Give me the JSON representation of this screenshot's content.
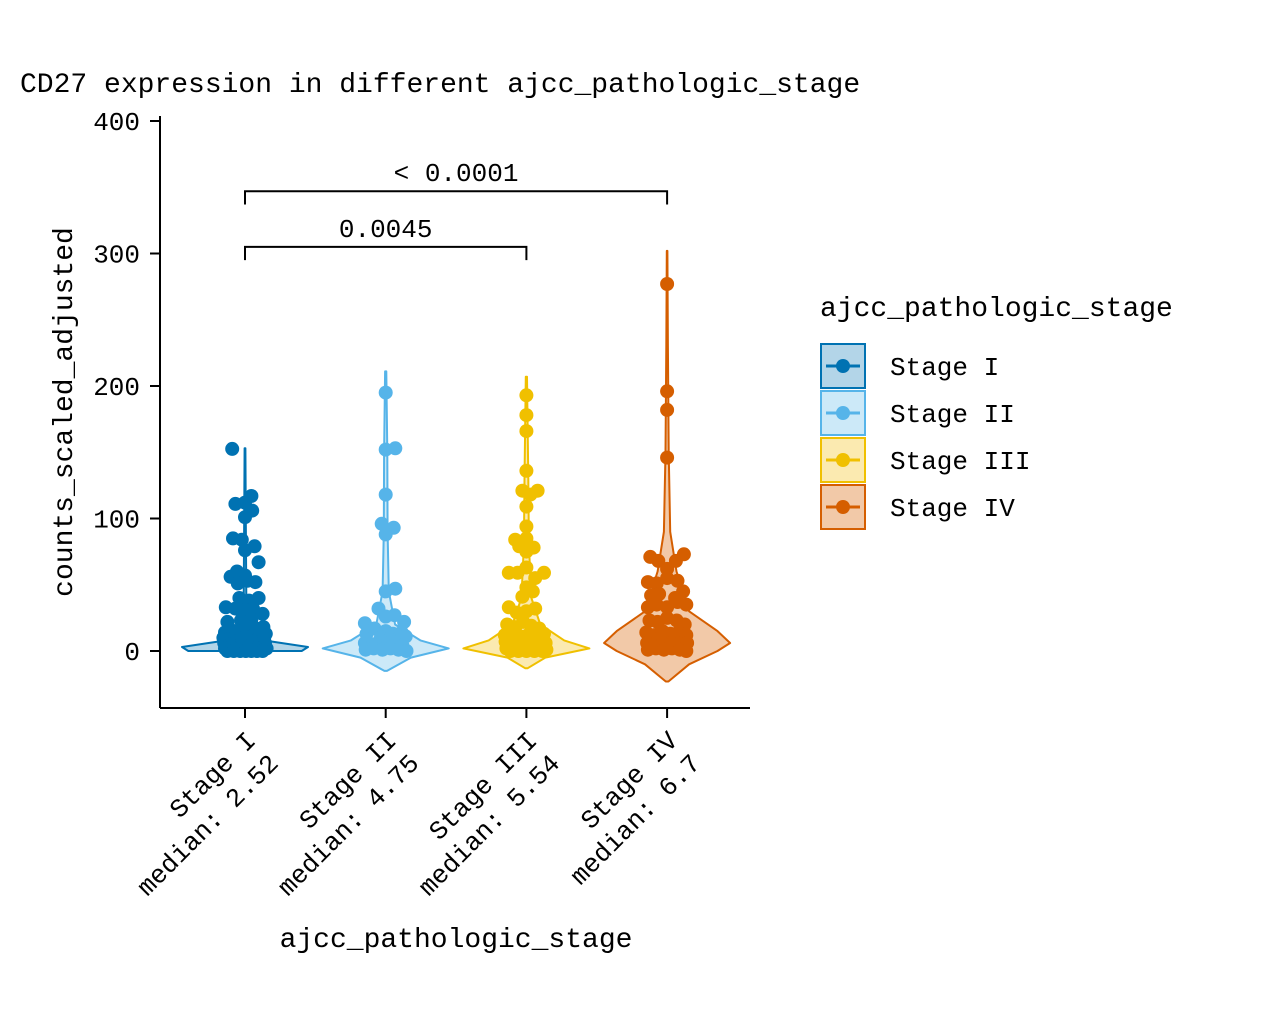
{
  "chart_data": {
    "type": "violin",
    "title": "CD27 expression in different ajcc_pathologic_stage",
    "xlabel": "ajcc_pathologic_stage",
    "ylabel": "counts_scaled_adjusted",
    "ylim": [
      -43,
      413
    ],
    "yticks": [
      0,
      100,
      200,
      300,
      400
    ],
    "grid": false,
    "legend_position": "right",
    "legend_title": "ajcc_pathologic_stage",
    "categories": [
      "Stage I",
      "Stage II",
      "Stage III",
      "Stage IV"
    ],
    "tick_labels": [
      [
        "Stage I",
        "median: 2.52"
      ],
      [
        "Stage II",
        "median: 4.75"
      ],
      [
        "Stage III",
        "median: 5.54"
      ],
      [
        "Stage IV",
        "median: 6.7"
      ]
    ],
    "medians": [
      2.52,
      4.75,
      5.54,
      6.7
    ],
    "series": [
      {
        "name": "Stage I",
        "color": "#0072B2",
        "fill": "#B3D5E8",
        "violin": {
          "min": 0,
          "max": 153,
          "profile": [
            [
              0,
              0.9
            ],
            [
              3,
              1.0
            ],
            [
              8,
              0.3
            ],
            [
              15,
              0.06
            ],
            [
              40,
              0.02
            ],
            [
              100,
              0.012
            ],
            [
              153,
              0.006
            ]
          ]
        },
        "points": [
          [
            -0.16,
            152.5
          ],
          [
            -0.12,
            111
          ],
          [
            0.0,
            112
          ],
          [
            0.08,
            117
          ],
          [
            0.09,
            106
          ],
          [
            0.0,
            101
          ],
          [
            -0.15,
            85
          ],
          [
            -0.04,
            84
          ],
          [
            0.12,
            79
          ],
          [
            0.0,
            76
          ],
          [
            0.17,
            67
          ],
          [
            -0.18,
            56
          ],
          [
            -0.1,
            60
          ],
          [
            0.0,
            57
          ],
          [
            -0.09,
            51
          ],
          [
            0.03,
            53
          ],
          [
            0.13,
            52
          ],
          [
            -0.07,
            40
          ],
          [
            0.05,
            38
          ],
          [
            0.17,
            40
          ],
          [
            -0.24,
            33
          ],
          [
            -0.12,
            32
          ],
          [
            0.0,
            31
          ],
          [
            0.1,
            32
          ],
          [
            0.22,
            28
          ],
          [
            -0.22,
            22
          ],
          [
            -0.05,
            23
          ],
          [
            0.02,
            20
          ],
          [
            0.08,
            24
          ],
          [
            0.23,
            18
          ],
          [
            -0.25,
            14
          ],
          [
            -0.18,
            16
          ],
          [
            -0.1,
            15
          ],
          [
            -0.03,
            14
          ],
          [
            0.05,
            16
          ],
          [
            0.14,
            17
          ],
          [
            0.2,
            15
          ],
          [
            0.26,
            13
          ],
          [
            -0.27,
            10
          ],
          [
            -0.2,
            9
          ],
          [
            -0.12,
            11
          ],
          [
            -0.06,
            9
          ],
          [
            0.02,
            10
          ],
          [
            0.09,
            11
          ],
          [
            0.16,
            9
          ],
          [
            0.24,
            10
          ],
          [
            -0.26,
            6
          ],
          [
            -0.18,
            5
          ],
          [
            -0.11,
            7
          ],
          [
            -0.04,
            6
          ],
          [
            0.03,
            5
          ],
          [
            0.1,
            7
          ],
          [
            0.17,
            5
          ],
          [
            0.25,
            6
          ],
          [
            -0.25,
            2
          ],
          [
            -0.17,
            3
          ],
          [
            -0.09,
            1
          ],
          [
            -0.02,
            2
          ],
          [
            0.05,
            3
          ],
          [
            0.13,
            1
          ],
          [
            0.2,
            2
          ],
          [
            0.27,
            2
          ],
          [
            -0.22,
            0
          ],
          [
            -0.14,
            0
          ],
          [
            -0.06,
            0
          ],
          [
            0.01,
            0
          ],
          [
            0.08,
            0
          ],
          [
            0.15,
            0
          ],
          [
            0.22,
            0
          ]
        ]
      },
      {
        "name": "Stage II",
        "color": "#56B4E9",
        "fill": "#CCE9F8",
        "violin": {
          "min": -15,
          "max": 211,
          "profile": [
            [
              -15,
              0.02
            ],
            [
              -5,
              0.4
            ],
            [
              2,
              1.0
            ],
            [
              8,
              0.55
            ],
            [
              20,
              0.15
            ],
            [
              45,
              0.05
            ],
            [
              90,
              0.03
            ],
            [
              150,
              0.025
            ],
            [
              211,
              0.01
            ]
          ]
        },
        "points": [
          [
            0.0,
            195
          ],
          [
            0.0,
            152
          ],
          [
            0.12,
            153
          ],
          [
            0.0,
            118
          ],
          [
            -0.05,
            96
          ],
          [
            0.1,
            93
          ],
          [
            0.0,
            88
          ],
          [
            0.12,
            47
          ],
          [
            0.0,
            45
          ],
          [
            -0.26,
            21
          ],
          [
            -0.09,
            32
          ],
          [
            0.0,
            26
          ],
          [
            0.11,
            27
          ],
          [
            0.23,
            22
          ],
          [
            -0.24,
            13
          ],
          [
            -0.14,
            17
          ],
          [
            0.0,
            15
          ],
          [
            0.09,
            13
          ],
          [
            0.2,
            14
          ],
          [
            -0.06,
            10
          ],
          [
            0.05,
            9
          ],
          [
            0.25,
            11
          ],
          [
            -0.26,
            6
          ],
          [
            -0.16,
            5
          ],
          [
            -0.05,
            7
          ],
          [
            0.03,
            5
          ],
          [
            0.12,
            6
          ],
          [
            0.21,
            4
          ],
          [
            -0.25,
            1
          ],
          [
            -0.15,
            2
          ],
          [
            -0.04,
            1
          ],
          [
            0.06,
            2
          ],
          [
            0.16,
            1
          ],
          [
            0.26,
            0
          ]
        ]
      },
      {
        "name": "Stage III",
        "color": "#F0C000",
        "fill": "#FBEAB0",
        "violin": {
          "min": -13,
          "max": 207,
          "profile": [
            [
              -13,
              0.02
            ],
            [
              -5,
              0.3
            ],
            [
              2,
              1.0
            ],
            [
              8,
              0.6
            ],
            [
              20,
              0.22
            ],
            [
              40,
              0.08
            ],
            [
              80,
              0.04
            ],
            [
              130,
              0.03
            ],
            [
              207,
              0.01
            ]
          ]
        },
        "points": [
          [
            0.0,
            193
          ],
          [
            0.0,
            178
          ],
          [
            0.0,
            166
          ],
          [
            0.0,
            136
          ],
          [
            -0.05,
            121
          ],
          [
            0.05,
            118
          ],
          [
            0.14,
            121
          ],
          [
            0.0,
            109
          ],
          [
            0.0,
            94
          ],
          [
            -0.14,
            84
          ],
          [
            0.0,
            85
          ],
          [
            -0.09,
            79
          ],
          [
            0.0,
            75
          ],
          [
            0.09,
            78
          ],
          [
            -0.22,
            59
          ],
          [
            -0.11,
            59
          ],
          [
            0.0,
            63
          ],
          [
            0.11,
            55
          ],
          [
            0.22,
            59
          ],
          [
            0.0,
            48
          ],
          [
            -0.05,
            41
          ],
          [
            0.08,
            45
          ],
          [
            -0.22,
            33
          ],
          [
            -0.12,
            29
          ],
          [
            0.0,
            30
          ],
          [
            0.11,
            32
          ],
          [
            -0.24,
            20
          ],
          [
            -0.14,
            18
          ],
          [
            -0.04,
            22
          ],
          [
            0.06,
            19
          ],
          [
            0.16,
            17
          ],
          [
            -0.27,
            12
          ],
          [
            -0.18,
            13
          ],
          [
            -0.08,
            11
          ],
          [
            0.02,
            12
          ],
          [
            0.12,
            11
          ],
          [
            0.22,
            13
          ],
          [
            -0.26,
            7
          ],
          [
            -0.16,
            6
          ],
          [
            -0.06,
            8
          ],
          [
            0.04,
            6
          ],
          [
            0.14,
            7
          ],
          [
            0.24,
            6
          ],
          [
            -0.25,
            2
          ],
          [
            -0.15,
            3
          ],
          [
            -0.05,
            1
          ],
          [
            0.05,
            2
          ],
          [
            0.15,
            3
          ],
          [
            0.25,
            1
          ],
          [
            -0.2,
            0
          ],
          [
            -0.1,
            0
          ],
          [
            0.0,
            0
          ],
          [
            0.1,
            0
          ],
          [
            0.2,
            0
          ]
        ]
      },
      {
        "name": "Stage IV",
        "color": "#D55E00",
        "fill": "#F2C9A8",
        "violin": {
          "min": -23,
          "max": 302,
          "profile": [
            [
              -23,
              0.02
            ],
            [
              -10,
              0.35
            ],
            [
              0,
              0.8
            ],
            [
              6,
              1.0
            ],
            [
              15,
              0.8
            ],
            [
              30,
              0.35
            ],
            [
              60,
              0.15
            ],
            [
              90,
              0.05
            ],
            [
              150,
              0.025
            ],
            [
              230,
              0.012
            ],
            [
              302,
              0.005
            ]
          ]
        },
        "points": [
          [
            0.0,
            277
          ],
          [
            0.0,
            196
          ],
          [
            0.0,
            182
          ],
          [
            0.0,
            146
          ],
          [
            -0.21,
            71
          ],
          [
            -0.11,
            68
          ],
          [
            0.0,
            62
          ],
          [
            0.11,
            68
          ],
          [
            0.21,
            73
          ],
          [
            -0.24,
            52
          ],
          [
            -0.13,
            51
          ],
          [
            0.0,
            55
          ],
          [
            0.13,
            53
          ],
          [
            0.2,
            45
          ],
          [
            -0.2,
            42
          ],
          [
            -0.1,
            43
          ],
          [
            -0.24,
            33
          ],
          [
            -0.13,
            35
          ],
          [
            0.0,
            33
          ],
          [
            0.13,
            37
          ],
          [
            0.24,
            35
          ],
          [
            0.1,
            40
          ],
          [
            -0.22,
            23
          ],
          [
            -0.12,
            22
          ],
          [
            0.0,
            25
          ],
          [
            0.12,
            23
          ],
          [
            0.22,
            20
          ],
          [
            -0.26,
            14
          ],
          [
            -0.16,
            12
          ],
          [
            -0.06,
            15
          ],
          [
            0.04,
            13
          ],
          [
            0.14,
            14
          ],
          [
            0.24,
            12
          ],
          [
            -0.25,
            6
          ],
          [
            -0.15,
            5
          ],
          [
            -0.05,
            7
          ],
          [
            0.05,
            6
          ],
          [
            0.15,
            5
          ],
          [
            0.25,
            6
          ],
          [
            -0.24,
            1
          ],
          [
            -0.14,
            2
          ],
          [
            -0.04,
            1
          ],
          [
            0.06,
            2
          ],
          [
            0.16,
            1
          ],
          [
            0.24,
            0
          ]
        ]
      }
    ],
    "comparisons": [
      {
        "groups": [
          "Stage I",
          "Stage III"
        ],
        "label": "0.0045",
        "y_bracket": 305,
        "y_tip": 295
      },
      {
        "groups": [
          "Stage I",
          "Stage IV"
        ],
        "label": "< 0.0001",
        "y_bracket": 347,
        "y_tip": 337
      }
    ]
  }
}
